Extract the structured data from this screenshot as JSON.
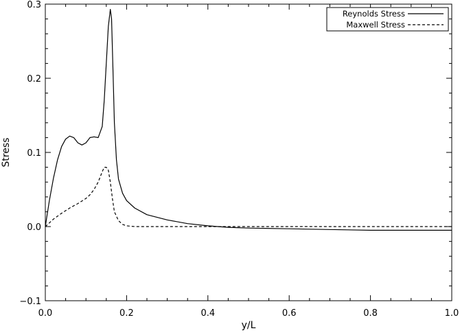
{
  "chart_data": {
    "type": "line",
    "title": "",
    "xlabel": "y/L",
    "ylabel": "Stress",
    "xlim": [
      0.0,
      1.0
    ],
    "ylim": [
      -0.1,
      0.3
    ],
    "xticks": [
      0.0,
      0.2,
      0.4,
      0.6,
      0.8,
      1.0
    ],
    "xtick_labels": [
      "0.0",
      "0.2",
      "0.4",
      "0.6",
      "0.8",
      "1.0"
    ],
    "yticks": [
      -0.1,
      0.0,
      0.1,
      0.2,
      0.3
    ],
    "ytick_labels": [
      "−0.1",
      "0.0",
      "0.1",
      "0.2",
      "0.3"
    ],
    "grid": false,
    "legend_position": "top-right",
    "series": [
      {
        "name": "Reynolds Stress",
        "style": "solid",
        "color": "#000000",
        "x": [
          0.0,
          0.01,
          0.02,
          0.03,
          0.04,
          0.05,
          0.06,
          0.07,
          0.08,
          0.09,
          0.1,
          0.11,
          0.12,
          0.13,
          0.14,
          0.145,
          0.15,
          0.155,
          0.16,
          0.163,
          0.166,
          0.17,
          0.175,
          0.18,
          0.19,
          0.2,
          0.22,
          0.25,
          0.3,
          0.35,
          0.4,
          0.45,
          0.5,
          0.6,
          0.7,
          0.8,
          0.9,
          1.0
        ],
        "y": [
          0.0,
          0.035,
          0.065,
          0.09,
          0.108,
          0.118,
          0.122,
          0.12,
          0.113,
          0.11,
          0.113,
          0.12,
          0.121,
          0.12,
          0.135,
          0.17,
          0.22,
          0.27,
          0.293,
          0.28,
          0.22,
          0.14,
          0.09,
          0.064,
          0.045,
          0.035,
          0.025,
          0.016,
          0.009,
          0.004,
          0.001,
          -0.001,
          -0.002,
          -0.003,
          -0.004,
          -0.005,
          -0.005,
          -0.005
        ]
      },
      {
        "name": "Maxwell Stress",
        "style": "dashed",
        "color": "#000000",
        "x": [
          0.0,
          0.02,
          0.04,
          0.06,
          0.08,
          0.1,
          0.11,
          0.12,
          0.13,
          0.14,
          0.145,
          0.15,
          0.155,
          0.16,
          0.165,
          0.17,
          0.18,
          0.19,
          0.2,
          0.22,
          0.25,
          0.3,
          1.0
        ],
        "y": [
          0.0,
          0.01,
          0.018,
          0.025,
          0.031,
          0.038,
          0.043,
          0.05,
          0.06,
          0.074,
          0.08,
          0.08,
          0.076,
          0.06,
          0.038,
          0.02,
          0.008,
          0.003,
          0.001,
          0.0,
          0.0,
          0.0,
          0.0
        ]
      }
    ]
  }
}
